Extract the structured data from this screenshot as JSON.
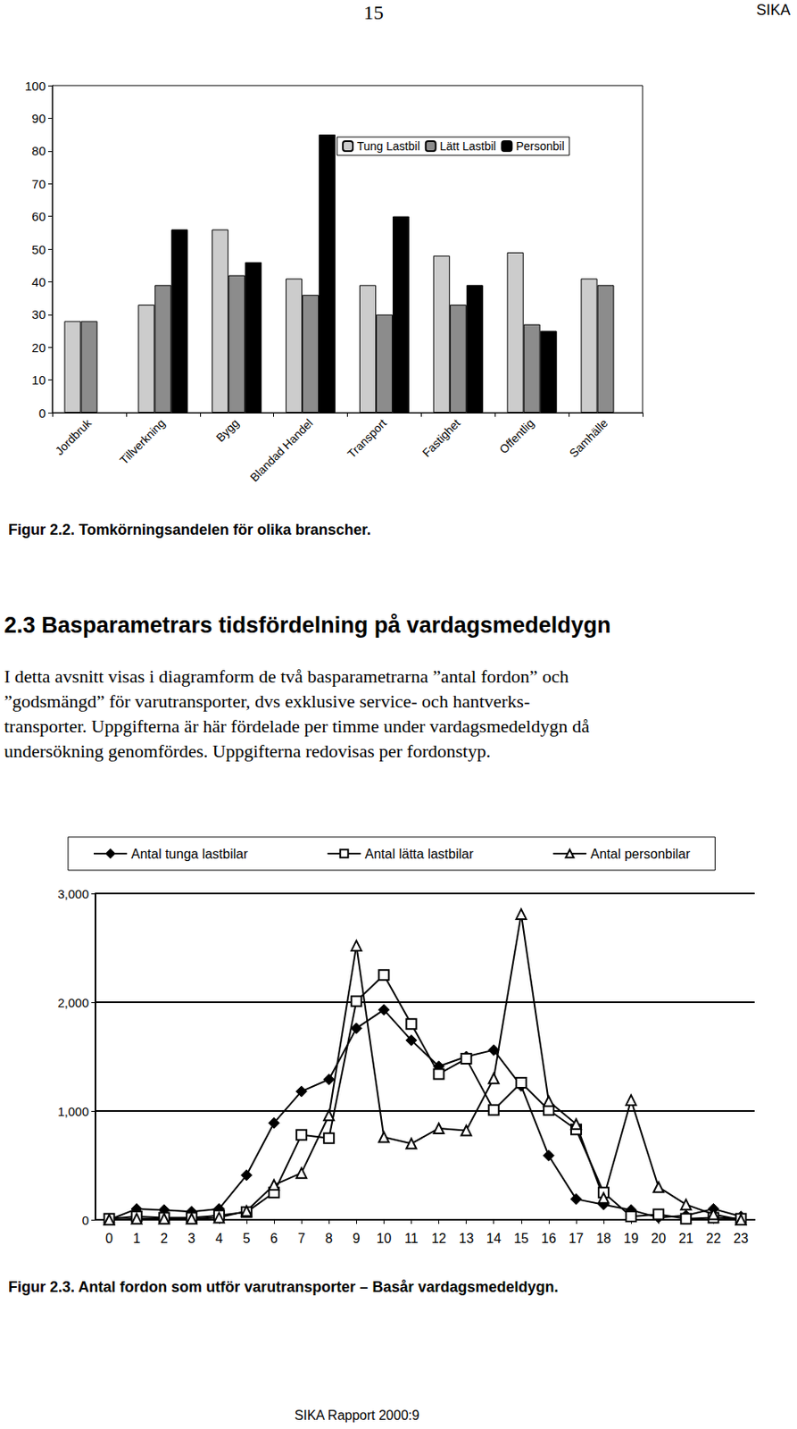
{
  "page": {
    "number": "15",
    "publisher": "SIKA",
    "footer": "SIKA Rapport 2000:9"
  },
  "section": {
    "heading": "2.3 Basparametrars tidsfördelning på vardagsmedeldygn",
    "paragraph_lines": [
      "I detta avsnitt visas i diagramform de två basparametrarna ”antal fordon” och",
      "”godsmängd” för varutransporter, dvs exklusive service- och hantverks-",
      "transporter. Uppgifterna är här fördelade per timme under vardagsmedeldygn då",
      "undersökning genomfördes. Uppgifterna redovisas per fordonstyp."
    ]
  },
  "chart_data": [
    {
      "type": "bar",
      "title": "Figur 2.2. Tomkörningsandelen för olika branscher.",
      "categories": [
        "Jordbruk",
        "Tillverkning",
        "Bygg",
        "Blandad Handel",
        "Transport",
        "Fastighet",
        "Offentlig",
        "Samhälle"
      ],
      "series": [
        {
          "name": "Tung Lastbil",
          "color": "#cccccc",
          "values": [
            28,
            33,
            56,
            41,
            39,
            48,
            49,
            41
          ]
        },
        {
          "name": "Lätt Lastbil",
          "color": "#8c8c8c",
          "values": [
            28,
            39,
            42,
            36,
            30,
            33,
            27,
            39
          ]
        },
        {
          "name": "Personbil",
          "color": "#000000",
          "values": [
            null,
            56,
            46,
            85,
            60,
            39,
            25,
            null
          ]
        }
      ],
      "ylim": [
        0,
        100
      ],
      "yticks": [
        0,
        10,
        20,
        30,
        40,
        50,
        60,
        70,
        80,
        90,
        100
      ],
      "grid": false,
      "legend": "top-right"
    },
    {
      "type": "line",
      "title": "Figur 2.3. Antal fordon som utför varutransporter – Basår vardagsmedeldygn.",
      "categories": [
        "0",
        "1",
        "2",
        "3",
        "4",
        "5",
        "6",
        "7",
        "8",
        "9",
        "10",
        "11",
        "12",
        "13",
        "14",
        "15",
        "16",
        "17",
        "18",
        "19",
        "20",
        "21",
        "22",
        "23"
      ],
      "series": [
        {
          "name": "Antal tunga lastbilar",
          "color": "#000000",
          "marker": "diamond",
          "line_style": "solid",
          "values": [
            0,
            100,
            90,
            75,
            100,
            410,
            890,
            1180,
            1290,
            1760,
            1930,
            1650,
            1410,
            1500,
            1560,
            1230,
            590,
            190,
            140,
            90,
            20,
            40,
            100,
            30
          ]
        },
        {
          "name": "Antal lätta lastbilar",
          "color": "#000000",
          "marker": "square-open",
          "line_style": "solid",
          "values": [
            10,
            30,
            20,
            20,
            40,
            70,
            250,
            780,
            750,
            2010,
            2250,
            1800,
            1340,
            1480,
            1010,
            1260,
            1010,
            830,
            250,
            30,
            50,
            10,
            20,
            10
          ]
        },
        {
          "name": "Antal personbilar",
          "color": "#000000",
          "marker": "triangle-open",
          "line_style": "solid",
          "values": [
            0,
            10,
            10,
            10,
            20,
            80,
            320,
            430,
            960,
            2520,
            760,
            700,
            840,
            820,
            1300,
            2810,
            1090,
            880,
            200,
            1100,
            300,
            140,
            50,
            0
          ]
        }
      ],
      "ylim": [
        0,
        3000
      ],
      "yticks": [
        0,
        1000,
        2000,
        3000
      ],
      "grid": true,
      "legend": "top"
    }
  ]
}
